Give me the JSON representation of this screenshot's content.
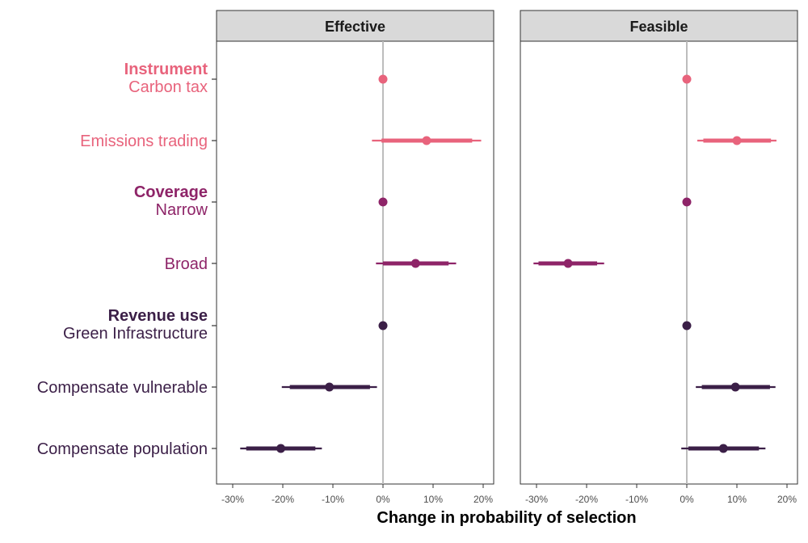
{
  "chart_data": {
    "type": "scatter",
    "subtype": "coefficient-plot",
    "xlabel": "Change in probability of selection",
    "xlim": [
      -33,
      22
    ],
    "xticks": [
      -30,
      -20,
      -10,
      0,
      10,
      20
    ],
    "xtick_labels": [
      "-30%",
      "-20%",
      "-10%",
      "0%",
      "10%",
      "20%"
    ],
    "reference_line": 0,
    "grid": false,
    "colors": {
      "instrument": "#E8637C",
      "coverage": "#8E2468",
      "revenue": "#3B1F47",
      "strip_fill": "#D9D9D9",
      "zero_line": "#BDBDBD"
    },
    "rows": [
      {
        "group": "instrument",
        "header": "Instrument",
        "label": "Carbon tax"
      },
      {
        "group": "instrument",
        "header": "",
        "label": "Emissions trading"
      },
      {
        "group": "coverage",
        "header": "Coverage",
        "label": "Narrow"
      },
      {
        "group": "coverage",
        "header": "",
        "label": "Broad"
      },
      {
        "group": "revenue",
        "header": "Revenue use",
        "label": "Green Infrastructure"
      },
      {
        "group": "revenue",
        "header": "",
        "label": "Compensate vulnerable"
      },
      {
        "group": "revenue",
        "header": "",
        "label": "Compensate population"
      }
    ],
    "panels": [
      {
        "title": "Effective",
        "points": [
          {
            "estimate": 0,
            "ci_inner": [
              0,
              0
            ],
            "ci_outer": [
              0,
              0
            ]
          },
          {
            "estimate": 8.7,
            "ci_inner": [
              -0.3,
              17.8
            ],
            "ci_outer": [
              -2.2,
              19.6
            ]
          },
          {
            "estimate": 0,
            "ci_inner": [
              0,
              0
            ],
            "ci_outer": [
              0,
              0
            ]
          },
          {
            "estimate": 6.5,
            "ci_inner": [
              0,
              13.1
            ],
            "ci_outer": [
              -1.4,
              14.6
            ]
          },
          {
            "estimate": 0,
            "ci_inner": [
              0,
              0
            ],
            "ci_outer": [
              0,
              0
            ]
          },
          {
            "estimate": -10.7,
            "ci_inner": [
              -18.6,
              -2.6
            ],
            "ci_outer": [
              -20.2,
              -1.2
            ]
          },
          {
            "estimate": -20.4,
            "ci_inner": [
              -27.3,
              -13.5
            ],
            "ci_outer": [
              -28.5,
              -12.2
            ]
          }
        ]
      },
      {
        "title": "Feasible",
        "points": [
          {
            "estimate": 0,
            "ci_inner": [
              0,
              0
            ],
            "ci_outer": [
              0,
              0
            ]
          },
          {
            "estimate": 10.0,
            "ci_inner": [
              3.3,
              16.8
            ],
            "ci_outer": [
              2.1,
              17.9
            ]
          },
          {
            "estimate": 0,
            "ci_inner": [
              0,
              0
            ],
            "ci_outer": [
              0,
              0
            ]
          },
          {
            "estimate": -23.7,
            "ci_inner": [
              -29.6,
              -17.9
            ],
            "ci_outer": [
              -30.6,
              -16.5
            ]
          },
          {
            "estimate": 0,
            "ci_inner": [
              0,
              0
            ],
            "ci_outer": [
              0,
              0
            ]
          },
          {
            "estimate": 9.7,
            "ci_inner": [
              3.0,
              16.6
            ],
            "ci_outer": [
              1.8,
              17.7
            ]
          },
          {
            "estimate": 7.3,
            "ci_inner": [
              0.3,
              14.4
            ],
            "ci_outer": [
              -1.1,
              15.7
            ]
          }
        ]
      }
    ]
  }
}
